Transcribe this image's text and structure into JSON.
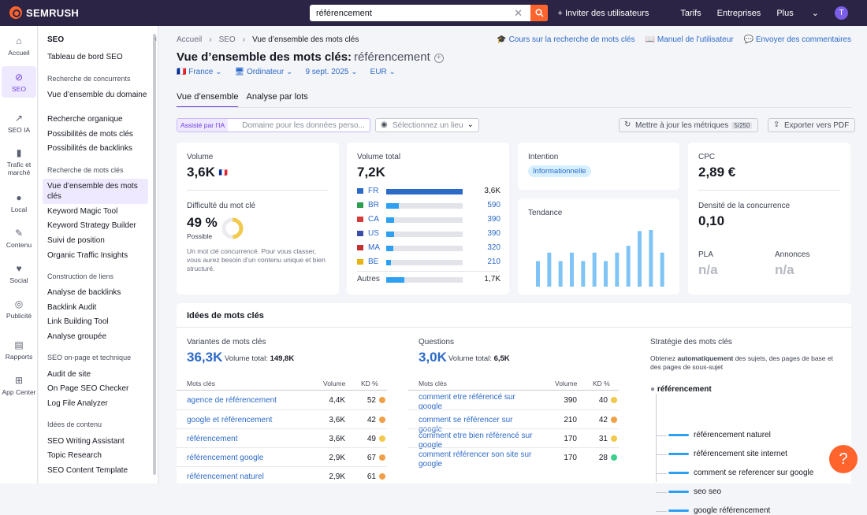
{
  "app": {
    "brand": "SEMRUSH"
  },
  "search": {
    "value": "référencement"
  },
  "topnav": {
    "invite": "Inviter des utilisateurs",
    "pricing": "Tarifs",
    "enterprise": "Entreprises",
    "more": "Plus",
    "avatar": "T"
  },
  "rail": [
    {
      "label": "Accueil"
    },
    {
      "label": "SEO"
    },
    {
      "label": "SEO IA"
    },
    {
      "label": "Trafic et marché"
    },
    {
      "label": "Local"
    },
    {
      "label": "Contenu"
    },
    {
      "label": "Social"
    },
    {
      "label": "Publicité"
    },
    {
      "label": "Rapports"
    },
    {
      "label": "App Center"
    }
  ],
  "sidebar": {
    "title": "SEO",
    "dashboard": "Tableau de bord SEO",
    "h1": "Recherche de concurrents",
    "g1": [
      "Vue d’ensemble du domaine",
      "Recherche organique",
      "Possibilités de mots clés",
      "Possibilités de backlinks"
    ],
    "h2": "Recherche de mots clés",
    "g2": [
      "Vue d’ensemble des mots clés",
      "Keyword Magic Tool",
      "Keyword Strategy Builder",
      "Suivi de position",
      "Organic Traffic Insights"
    ],
    "h3": "Construction de liens",
    "g3": [
      "Analyse de backlinks",
      "Backlink Audit",
      "Link Building Tool",
      "Analyse groupée"
    ],
    "h4": "SEO on-page et technique",
    "g4": [
      "Audit de site",
      "On Page SEO Checker",
      "Log File Analyzer"
    ],
    "h5": "Idées de contenu",
    "g5": [
      "SEO Writing Assistant",
      "Topic Research",
      "SEO Content Template"
    ]
  },
  "breadcrumb": [
    "Accueil",
    "SEO",
    "Vue d’ensemble des mots clés"
  ],
  "toplinks": [
    "Cours sur la recherche de mots clés",
    "Manuel de l’utilisateur",
    "Envoyer des commentaires"
  ],
  "page": {
    "title": "Vue d’ensemble des mots clés:",
    "keyword": "référencement"
  },
  "filters": {
    "country": "France",
    "device": "Ordinateur",
    "date": "9 sept. 2025",
    "currency": "EUR"
  },
  "tabs": [
    "Vue d’ensemble",
    "Analyse par lots"
  ],
  "toolbar": {
    "ai_label": "Assisté par l’IA",
    "ai_placeholder": "Domaine pour les données perso...",
    "location_placeholder": "Sélectionnez un lieu",
    "update": "Mettre à jour les métriques",
    "update_count": "5/250",
    "export": "Exporter vers PDF"
  },
  "volume": {
    "label": "Volume",
    "value": "3,6K"
  },
  "difficulty": {
    "label": "Difficulté du mot clé",
    "value": "49 %",
    "level": "Possible",
    "percent": 49,
    "note": "Un mot clé concurrencé. Pour vous classer, vous aurez besoin d’un contenu unique et bien structuré."
  },
  "global": {
    "label": "Volume total",
    "value": "7,2K",
    "rows": [
      {
        "code": "FR",
        "val": "3,6K",
        "share": 0.5
      },
      {
        "code": "BR",
        "val": "590",
        "share": 0.08
      },
      {
        "code": "CA",
        "val": "390",
        "share": 0.05
      },
      {
        "code": "US",
        "val": "390",
        "share": 0.05
      },
      {
        "code": "MA",
        "val": "320",
        "share": 0.045
      },
      {
        "code": "BE",
        "val": "210",
        "share": 0.03
      }
    ],
    "others": {
      "label": "Autres",
      "val": "1,7K",
      "share": 0.24
    }
  },
  "intent": {
    "label": "Intention",
    "value": "Informationnelle"
  },
  "trend": {
    "label": "Tendance",
    "values": [
      0.45,
      0.6,
      0.45,
      0.6,
      0.45,
      0.6,
      0.45,
      0.6,
      0.72,
      0.98,
      1.0,
      0.6
    ]
  },
  "cpc": {
    "label": "CPC",
    "value": "2,89 €"
  },
  "density": {
    "label": "Densité de la concurrence",
    "value": "0,10"
  },
  "pla": {
    "label": "PLA",
    "value": "n/a"
  },
  "ads": {
    "label": "Annonces",
    "value": "n/a"
  },
  "ideas": {
    "title": "Idées de mots clés",
    "variants": {
      "label": "Variantes de mots clés",
      "count": "36,3K",
      "total_label": "Volume total:",
      "total": "149,8K",
      "headers": [
        "Mots clés",
        "Volume",
        "KD %"
      ],
      "rows": [
        {
          "kw": "agence de référencement",
          "vol": "4,4K",
          "kd": "52",
          "color": "#f0a04b"
        },
        {
          "kw": "google et référencement",
          "vol": "3,6K",
          "kd": "42",
          "color": "#f0a04b"
        },
        {
          "kw": "référencement",
          "vol": "3,6K",
          "kd": "49",
          "color": "#f2c94c"
        },
        {
          "kw": "référencement google",
          "vol": "2,9K",
          "kd": "67",
          "color": "#f0a04b"
        },
        {
          "kw": "référencement naturel",
          "vol": "2,9K",
          "kd": "61",
          "color": "#f0a04b"
        }
      ]
    },
    "questions": {
      "label": "Questions",
      "count": "3,0K",
      "total_label": "Volume total:",
      "total": "6,5K",
      "headers": [
        "Mots clés",
        "Volume",
        "KD %"
      ],
      "rows": [
        {
          "kw": "comment etre référencé sur google",
          "vol": "390",
          "kd": "40",
          "color": "#f2c94c"
        },
        {
          "kw": "comment se référencer sur google",
          "vol": "210",
          "kd": "42",
          "color": "#f0a04b"
        },
        {
          "kw": "comment etre bien référencé sur google",
          "vol": "170",
          "kd": "31",
          "color": "#f2c94c"
        },
        {
          "kw": "comment référencer son site sur google",
          "vol": "170",
          "kd": "28",
          "color": "#3ecf8e"
        }
      ]
    },
    "strategy": {
      "label": "Stratégie des mots clés",
      "desc_pre": "Obtenez ",
      "desc_bold": "automatiquement",
      "desc_post": " des sujets, des pages de base et des pages de sous-sujet",
      "root": "référencement",
      "leaves": [
        "référencement naturel",
        "référencement site internet",
        "comment se referencer sur google",
        "seo seo",
        "google référencement"
      ]
    }
  }
}
